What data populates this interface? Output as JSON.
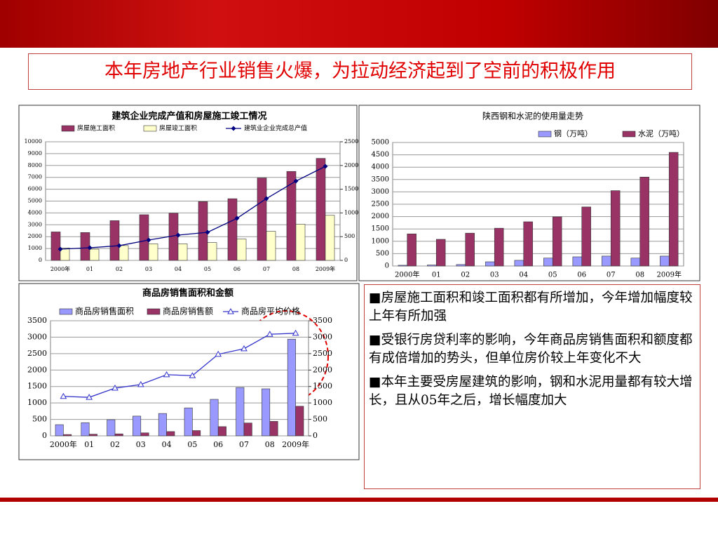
{
  "title": "本年房地产行业销售火爆，为拉动经济起到了空前的积极作用",
  "bullets": [
    "■房屋施工面积和竣工面积都有所增加，今年增加幅度较上年有所加强",
    "■受银行房贷利率的影响，今年商品房销售面积和额度都有成倍增加的势头，但单位房价较上年变化不大",
    "■本年主要受房屋建筑的影响，钢和水泥用量都有较大增长，且从05年之后，增长幅度加大"
  ],
  "chart_data": [
    {
      "type": "bar",
      "title": "建筑企业完成产值和房屋施工竣工情况",
      "categories": [
        "2000年",
        "01",
        "02",
        "03",
        "04",
        "05",
        "06",
        "07",
        "08",
        "2009年"
      ],
      "series": [
        {
          "name": "房屋施工面积",
          "color": "#993366",
          "values": [
            2400,
            2350,
            3350,
            3850,
            3980,
            4950,
            5200,
            6950,
            7500,
            8600
          ]
        },
        {
          "name": "房屋竣工面积",
          "color": "#ffffcc",
          "values": [
            1050,
            950,
            1250,
            1400,
            1400,
            1500,
            1800,
            2450,
            3050,
            3800
          ]
        },
        {
          "name": "建筑业企业完成总产值",
          "color": "#000080",
          "type": "line",
          "marker": "diamond",
          "axis": "y2",
          "values": [
            237,
            266,
            310,
            429,
            532,
            592,
            887,
            1302,
            1671,
            1982
          ]
        }
      ],
      "ylim": [
        0,
        10000
      ],
      "yticks": [
        0,
        1000,
        2000,
        3000,
        4000,
        5000,
        6000,
        7000,
        8000,
        9000,
        10000
      ],
      "y2lim": [
        0,
        2500
      ],
      "y2ticks": [
        0,
        500,
        1000,
        1500,
        2000,
        2500
      ]
    },
    {
      "type": "bar",
      "title": "陕西钢和水泥的使用量走势",
      "categories": [
        "2000年",
        "01",
        "02",
        "03",
        "04",
        "05",
        "06",
        "07",
        "08",
        "2009年"
      ],
      "series": [
        {
          "name": "钢（万吨）",
          "color": "#9999ff",
          "values": [
            30,
            40,
            60,
            170,
            230,
            320,
            370,
            400,
            320,
            400
          ]
        },
        {
          "name": "水泥（万吨）",
          "color": "#993366",
          "values": [
            1300,
            1080,
            1330,
            1530,
            1790,
            1990,
            2390,
            3050,
            3600,
            4600
          ]
        }
      ],
      "ylim": [
        0,
        5000
      ],
      "yticks": [
        0,
        500,
        1000,
        1500,
        2000,
        2500,
        3000,
        3500,
        4000,
        4500,
        5000
      ]
    },
    {
      "type": "bar",
      "title": "商品房销售面积和金额",
      "categories": [
        "2000年",
        "01",
        "02",
        "03",
        "04",
        "05",
        "06",
        "07",
        "08",
        "2009年"
      ],
      "series": [
        {
          "name": "商品房销售面积",
          "color": "#9999ff",
          "values": [
            340,
            400,
            490,
            600,
            680,
            850,
            1110,
            1470,
            1430,
            2940
          ]
        },
        {
          "name": "商品房销售额",
          "color": "#993366",
          "values": [
            40,
            50,
            60,
            90,
            130,
            160,
            280,
            390,
            440,
            900
          ]
        },
        {
          "name": "商品房平均价格",
          "color": "#3333cc",
          "type": "line",
          "marker": "triangle",
          "axis": "y2",
          "values": [
            1200,
            1170,
            1450,
            1560,
            1860,
            1830,
            2480,
            2650,
            3090,
            3120
          ]
        }
      ],
      "ylim": [
        0,
        3500
      ],
      "yticks": [
        0,
        500,
        1000,
        1500,
        2000,
        2500,
        3000,
        3500
      ],
      "y2lim": [
        0,
        3500
      ],
      "y2ticks": [
        0,
        500,
        1000,
        1500,
        2000,
        2500,
        3000,
        3500
      ]
    }
  ]
}
